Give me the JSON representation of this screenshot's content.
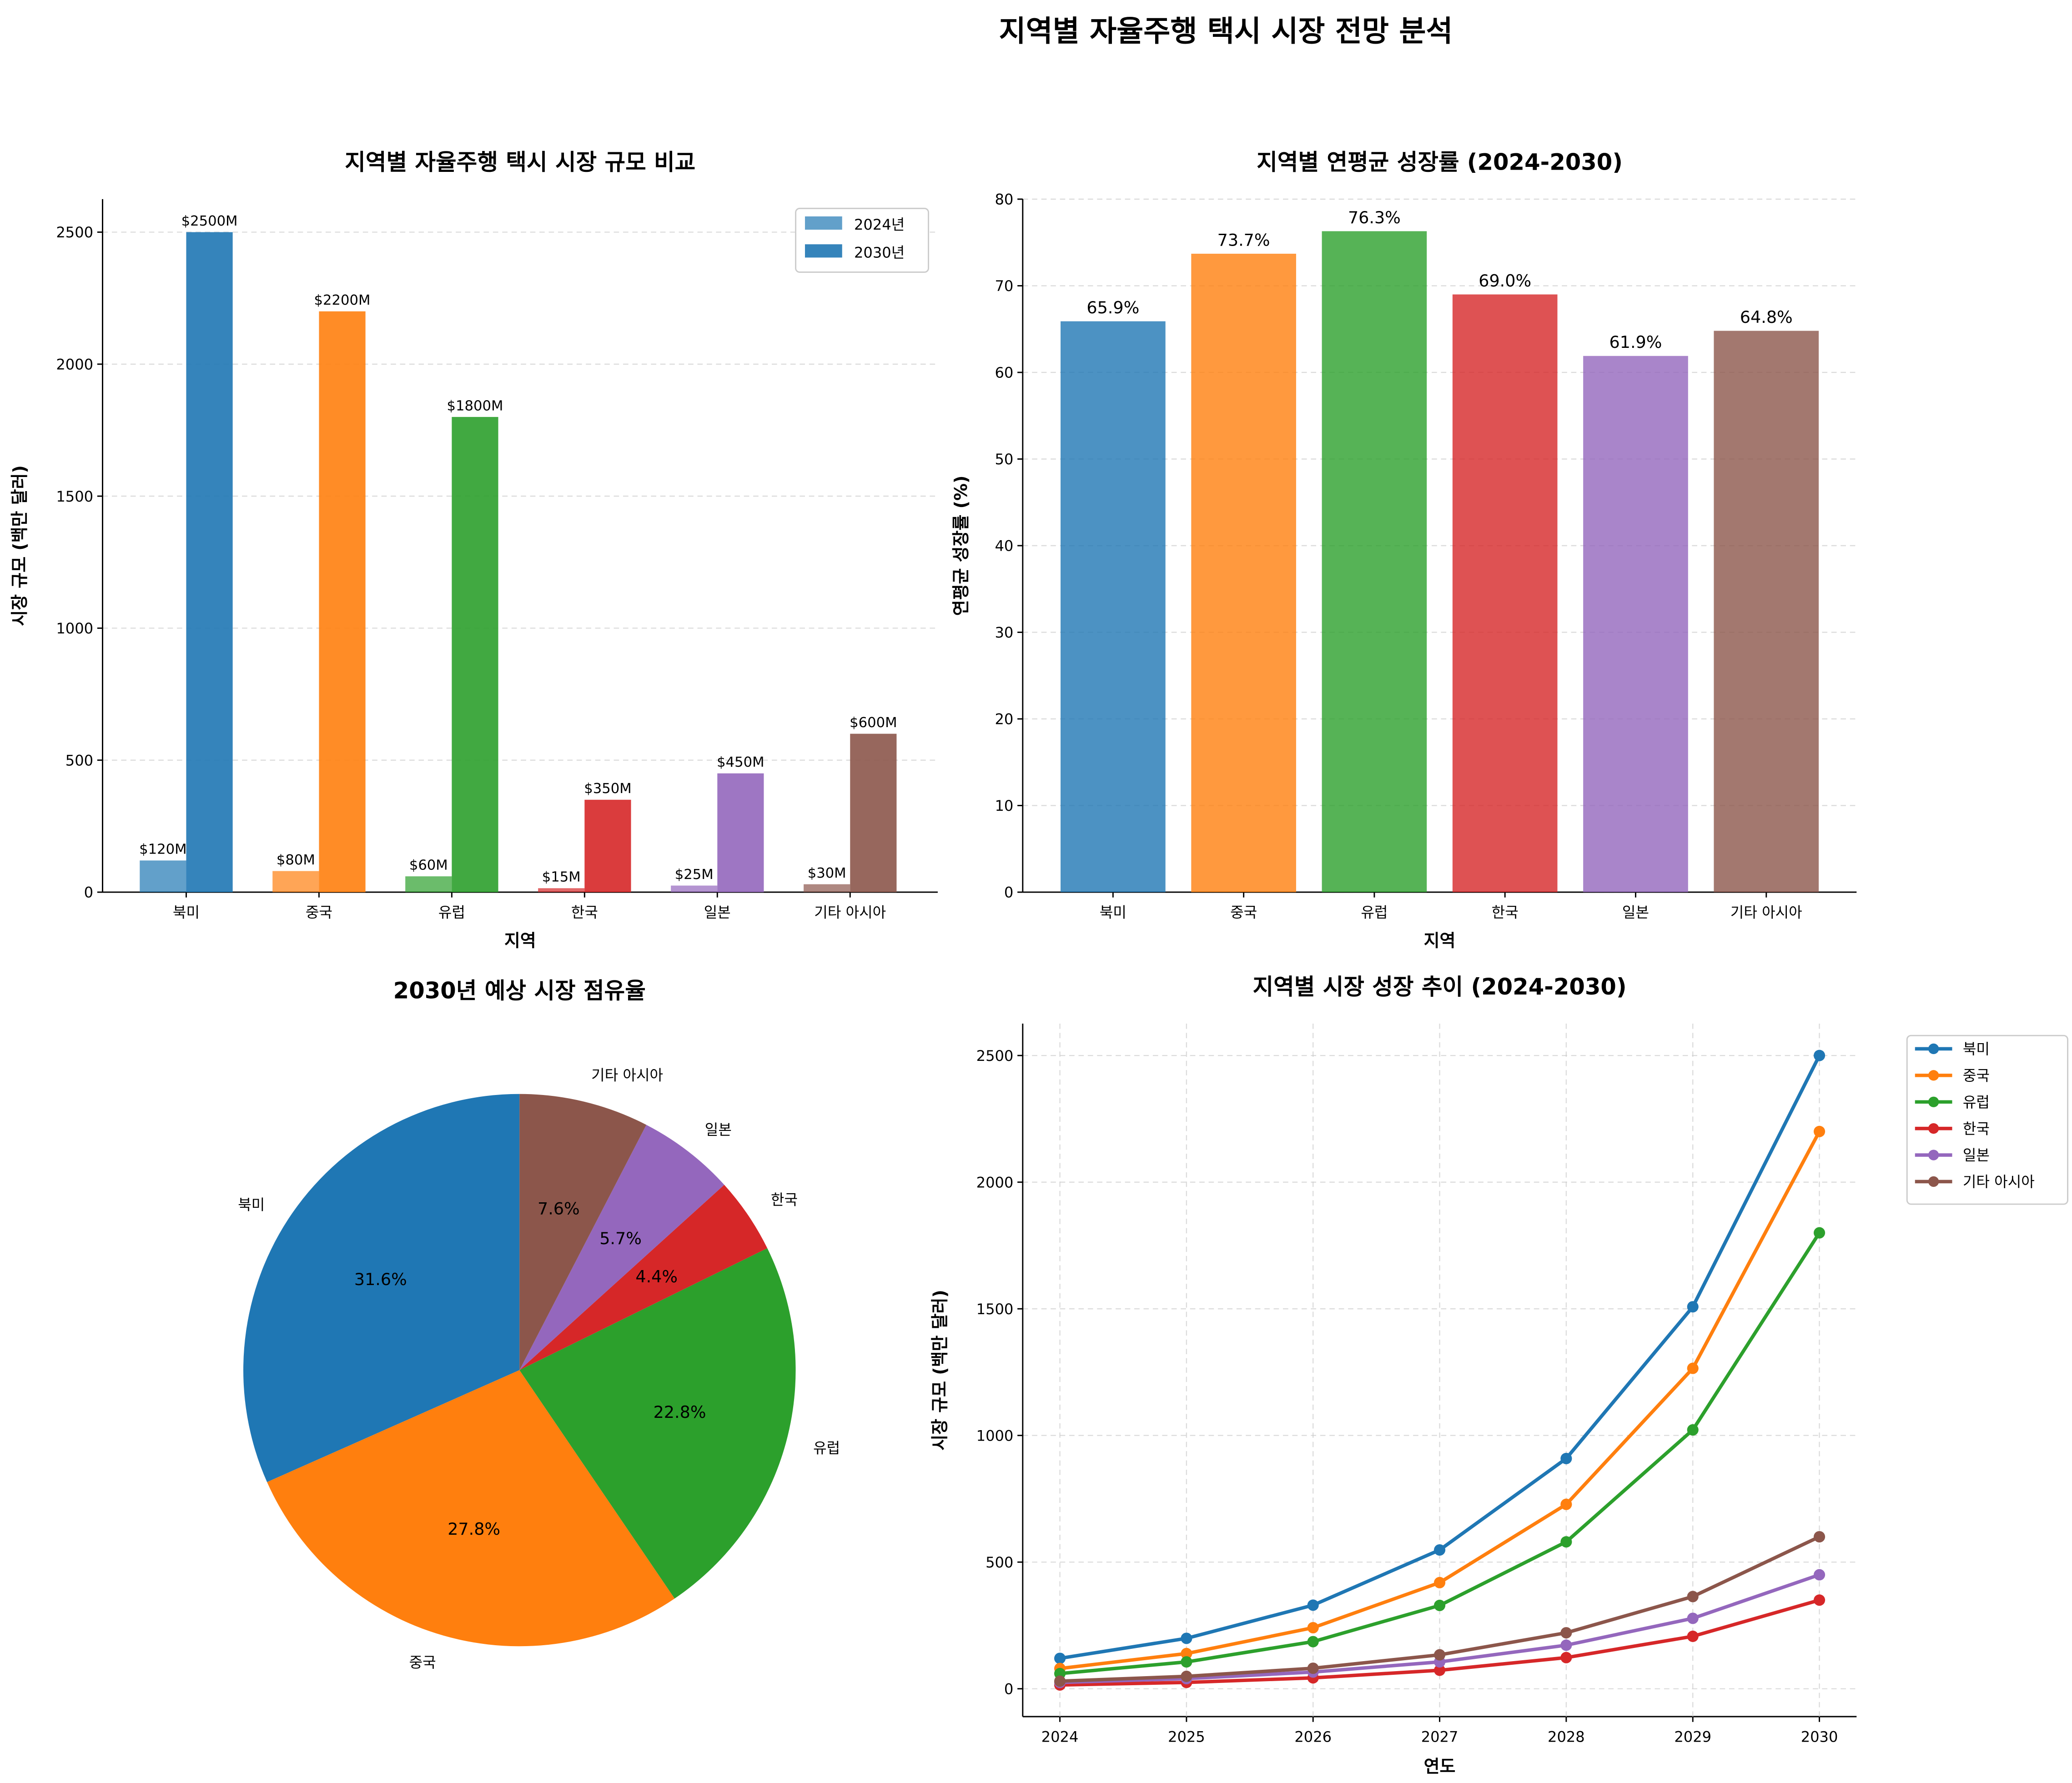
{
  "suptitle": "지역별 자율주행 택시 시장 전망 분석",
  "colors": [
    "#1f77b4",
    "#ff7f0e",
    "#2ca02c",
    "#d62728",
    "#9467bd",
    "#8c564b"
  ],
  "chart_data": [
    {
      "type": "bar",
      "title": "지역별 자율주행 택시 시장 규모 비교",
      "xlabel": "지역",
      "ylabel": "시장 규모 (백만 달러)",
      "categories": [
        "북미",
        "중국",
        "유럽",
        "한국",
        "일본",
        "기타 아시아"
      ],
      "series": [
        {
          "name": "2024년",
          "values": [
            120,
            80,
            60,
            15,
            25,
            30
          ],
          "labels": [
            "$120M",
            "$80M",
            "$60M",
            "$15M",
            "$25M",
            "$30M"
          ]
        },
        {
          "name": "2030년",
          "values": [
            2500,
            2200,
            1800,
            350,
            450,
            600
          ],
          "labels": [
            "$2500M",
            "$2200M",
            "$1800M",
            "$350M",
            "$450M",
            "$600M"
          ]
        }
      ],
      "yticks": [
        0,
        500,
        1000,
        1500,
        2000,
        2500
      ],
      "ylim": [
        0,
        2625
      ],
      "grid": "y",
      "legend": "upper-right"
    },
    {
      "type": "bar",
      "title": "지역별 연평균 성장률 (2024-2030)",
      "xlabel": "지역",
      "ylabel": "연평균 성장률 (%)",
      "categories": [
        "북미",
        "중국",
        "유럽",
        "한국",
        "일본",
        "기타 아시아"
      ],
      "values": [
        65.9,
        73.7,
        76.3,
        69.0,
        61.9,
        64.8
      ],
      "labels": [
        "65.9%",
        "73.7%",
        "76.3%",
        "69.0%",
        "61.9%",
        "64.8%"
      ],
      "yticks": [
        0,
        10,
        20,
        30,
        40,
        50,
        60,
        70,
        80
      ],
      "ylim": [
        0,
        80
      ],
      "grid": "y"
    },
    {
      "type": "pie",
      "title": "2030년 예상 시장 점유율",
      "categories": [
        "북미",
        "중국",
        "유럽",
        "한국",
        "일본",
        "기타 아시아"
      ],
      "values": [
        2500,
        2200,
        1800,
        350,
        450,
        600
      ],
      "labels": [
        "31.6%",
        "27.8%",
        "22.8%",
        "4.4%",
        "5.7%",
        "7.6%"
      ],
      "startangle": 90
    },
    {
      "type": "line",
      "title": "지역별 시장 성장 추이 (2024-2030)",
      "xlabel": "연도",
      "ylabel": "시장 규모 (백만 달러)",
      "x": [
        2024,
        2025,
        2026,
        2027,
        2028,
        2029,
        2030
      ],
      "series": [
        {
          "name": "북미",
          "values": [
            120,
            199,
            330,
            548,
            909,
            1508,
            2500
          ]
        },
        {
          "name": "중국",
          "values": [
            80,
            139,
            241,
            419,
            728,
            1265,
            2200
          ]
        },
        {
          "name": "유럽",
          "values": [
            60,
            106,
            186,
            329,
            580,
            1022,
            1800
          ]
        },
        {
          "name": "한국",
          "values": [
            15,
            25,
            43,
            73,
            123,
            207,
            350
          ]
        },
        {
          "name": "일본",
          "values": [
            25,
            40,
            66,
            106,
            172,
            278,
            450
          ]
        },
        {
          "name": "기타 아시아",
          "values": [
            30,
            49,
            81,
            134,
            221,
            364,
            600
          ]
        }
      ],
      "yticks": [
        0,
        500,
        1000,
        1500,
        2000,
        2500
      ],
      "ylim": [
        -110,
        2626
      ],
      "grid": "both",
      "legend": "outside-upper-right"
    }
  ]
}
